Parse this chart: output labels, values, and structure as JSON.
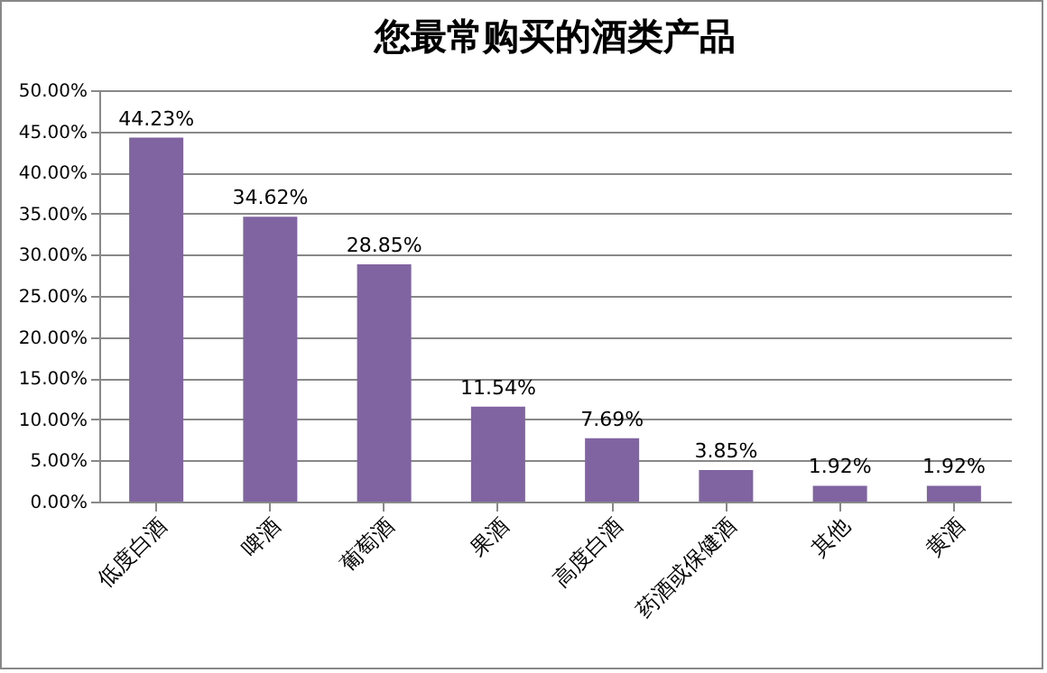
{
  "chart_data": {
    "type": "bar",
    "title": "您最常购买的酒类产品",
    "categories": [
      "低度白酒",
      "啤酒",
      "葡萄酒",
      "果酒",
      "高度白酒",
      "药酒或保健酒",
      "其他",
      "黄酒"
    ],
    "values": [
      44.23,
      34.62,
      28.85,
      11.54,
      7.69,
      3.85,
      1.92,
      1.92
    ],
    "value_labels": [
      "44.23%",
      "34.62%",
      "28.85%",
      "11.54%",
      "7.69%",
      "3.85%",
      "1.92%",
      "1.92%"
    ],
    "color": "#8064a2",
    "ylim": [
      0,
      50
    ],
    "yticks": [
      {
        "value": 0,
        "label": "0.00%"
      },
      {
        "value": 5,
        "label": "5.00%"
      },
      {
        "value": 10,
        "label": "10.00%"
      },
      {
        "value": 15,
        "label": "15.00%"
      },
      {
        "value": 20,
        "label": "20.00%"
      },
      {
        "value": 25,
        "label": "25.00%"
      },
      {
        "value": 30,
        "label": "30.00%"
      },
      {
        "value": 35,
        "label": "35.00%"
      },
      {
        "value": 40,
        "label": "40.00%"
      },
      {
        "value": 45,
        "label": "45.00%"
      },
      {
        "value": 50,
        "label": "50.00%"
      }
    ],
    "grid": "y"
  }
}
